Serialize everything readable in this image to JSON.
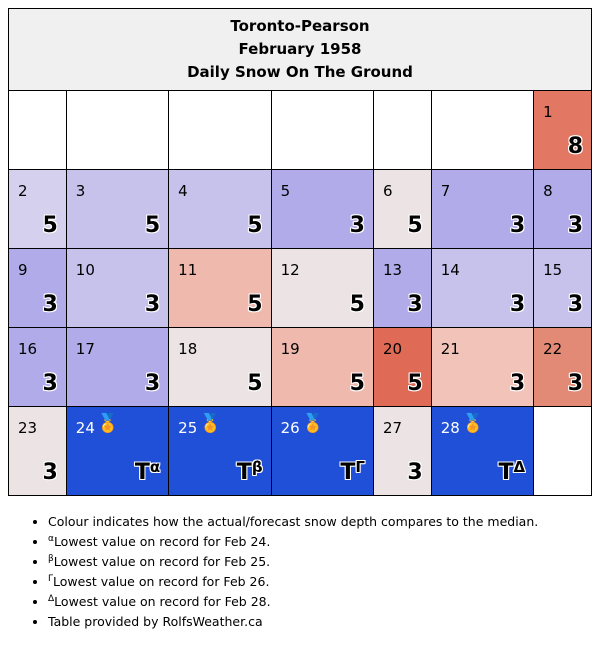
{
  "header": {
    "station": "Toronto-Pearson",
    "period": "February 1958",
    "subtitle": "Daily Snow On The Ground"
  },
  "colors": {
    "empty": "#ffffff",
    "lavender_light": "#d4d0ee",
    "lavender_mid": "#c6c2ec",
    "lavender": "#b1ace9",
    "near_median": "#ece3e4",
    "salmon_light": "#f2c4b9",
    "salmon": "#f0b9ad",
    "red_orange": "#e28a76",
    "red": "#e27764",
    "red_dark": "#df6a55",
    "record_blue": "#2150d8"
  },
  "weeks": [
    [
      {
        "day": "",
        "value": "",
        "color": "empty"
      },
      {
        "day": "",
        "value": "",
        "color": "empty"
      },
      {
        "day": "",
        "value": "",
        "color": "empty"
      },
      {
        "day": "",
        "value": "",
        "color": "empty"
      },
      {
        "day": "",
        "value": "",
        "color": "empty"
      },
      {
        "day": "",
        "value": "",
        "color": "empty"
      },
      {
        "day": "1",
        "value": "8",
        "color": "red"
      }
    ],
    [
      {
        "day": "2",
        "value": "5",
        "color": "lavender_light"
      },
      {
        "day": "3",
        "value": "5",
        "color": "lavender_mid"
      },
      {
        "day": "4",
        "value": "5",
        "color": "lavender_mid"
      },
      {
        "day": "5",
        "value": "3",
        "color": "lavender"
      },
      {
        "day": "6",
        "value": "5",
        "color": "near_median"
      },
      {
        "day": "7",
        "value": "3",
        "color": "lavender"
      },
      {
        "day": "8",
        "value": "3",
        "color": "lavender"
      }
    ],
    [
      {
        "day": "9",
        "value": "3",
        "color": "lavender"
      },
      {
        "day": "10",
        "value": "3",
        "color": "lavender_mid"
      },
      {
        "day": "11",
        "value": "5",
        "color": "salmon"
      },
      {
        "day": "12",
        "value": "5",
        "color": "near_median"
      },
      {
        "day": "13",
        "value": "3",
        "color": "lavender"
      },
      {
        "day": "14",
        "value": "3",
        "color": "lavender_mid"
      },
      {
        "day": "15",
        "value": "3",
        "color": "lavender_mid"
      }
    ],
    [
      {
        "day": "16",
        "value": "3",
        "color": "lavender"
      },
      {
        "day": "17",
        "value": "3",
        "color": "lavender"
      },
      {
        "day": "18",
        "value": "5",
        "color": "near_median"
      },
      {
        "day": "19",
        "value": "5",
        "color": "salmon"
      },
      {
        "day": "20",
        "value": "5",
        "color": "red_dark"
      },
      {
        "day": "21",
        "value": "3",
        "color": "salmon_light"
      },
      {
        "day": "22",
        "value": "3",
        "color": "red_orange"
      }
    ],
    [
      {
        "day": "23",
        "value": "3",
        "color": "near_median"
      },
      {
        "day": "24",
        "value": "T",
        "sup": "α",
        "color": "record_blue",
        "record": true
      },
      {
        "day": "25",
        "value": "T",
        "sup": "β",
        "color": "record_blue",
        "record": true
      },
      {
        "day": "26",
        "value": "T",
        "sup": "Γ",
        "color": "record_blue",
        "record": true
      },
      {
        "day": "27",
        "value": "3",
        "color": "near_median"
      },
      {
        "day": "28",
        "value": "T",
        "sup": "Δ",
        "color": "record_blue",
        "record": true
      },
      {
        "day": "",
        "value": "",
        "color": "empty"
      }
    ]
  ],
  "notes": [
    {
      "sup": "",
      "text": "Colour indicates how the actual/forecast snow depth compares to the median."
    },
    {
      "sup": "α",
      "text": "Lowest value on record for Feb 24."
    },
    {
      "sup": "β",
      "text": "Lowest value on record for Feb 25."
    },
    {
      "sup": "Γ",
      "text": "Lowest value on record for Feb 26."
    },
    {
      "sup": "Δ",
      "text": "Lowest value on record for Feb 28."
    },
    {
      "sup": "",
      "text": "Table provided by RolfsWeather.ca"
    }
  ],
  "icons": {
    "record": "medal-icon"
  }
}
